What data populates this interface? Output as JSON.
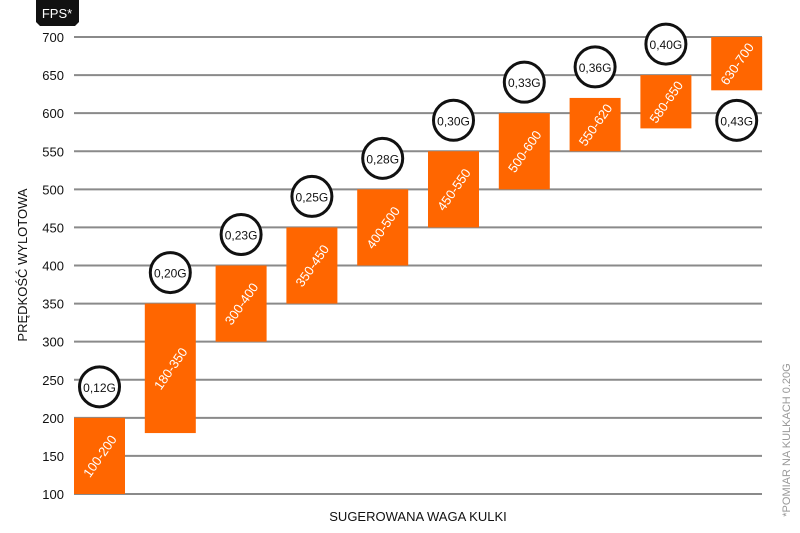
{
  "chart_data": {
    "type": "bar",
    "subtype": "floating-range",
    "unit_badge": "FPS*",
    "ylabel": "PRĘDKOŚĆ WYLOTOWA",
    "xlabel": "SUGEROWANA WAGA KULKI",
    "footnote": "*POMIAR NA KULKACH 0.20G",
    "ylim": [
      100,
      700
    ],
    "yticks": [
      100,
      150,
      200,
      250,
      300,
      350,
      400,
      450,
      500,
      550,
      600,
      650,
      700
    ],
    "grid": true,
    "bar_color": "#ff6600",
    "bars": [
      {
        "weight": "0,12G",
        "low": 100,
        "high": 200,
        "label": "100-200"
      },
      {
        "weight": "0,20G",
        "low": 180,
        "high": 350,
        "label": "180-350"
      },
      {
        "weight": "0,23G",
        "low": 300,
        "high": 400,
        "label": "300-400"
      },
      {
        "weight": "0,25G",
        "low": 350,
        "high": 450,
        "label": "350-450"
      },
      {
        "weight": "0,28G",
        "low": 400,
        "high": 500,
        "label": "400-500"
      },
      {
        "weight": "0,30G",
        "low": 450,
        "high": 550,
        "label": "450-550"
      },
      {
        "weight": "0,33G",
        "low": 500,
        "high": 600,
        "label": "500-600"
      },
      {
        "weight": "0,36G",
        "low": 550,
        "high": 620,
        "label": "550-620"
      },
      {
        "weight": "0,40G",
        "low": 580,
        "high": 650,
        "label": "580-650"
      },
      {
        "weight": "0,43G",
        "low": 630,
        "high": 700,
        "label": "630-700",
        "badge_below": true
      }
    ]
  }
}
